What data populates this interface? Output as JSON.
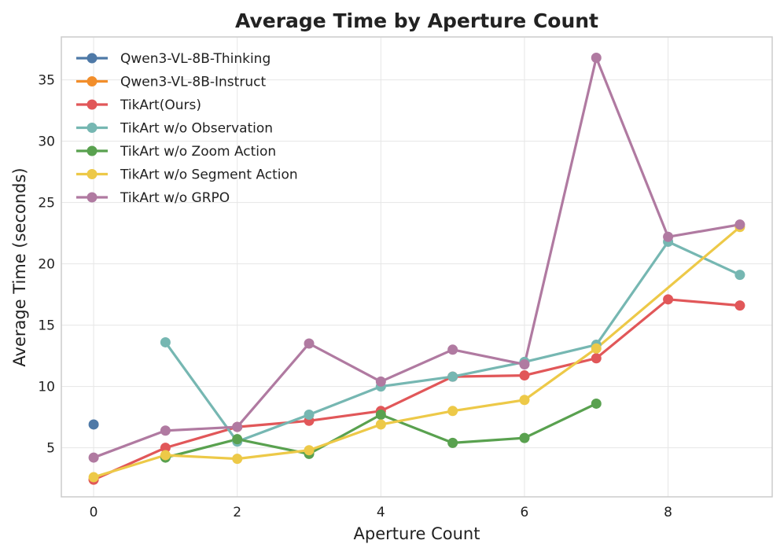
{
  "chart_data": {
    "type": "line",
    "title": "Average Time by Aperture Count",
    "xlabel": "Aperture Count",
    "ylabel": "Average Time (seconds)",
    "xlim": [
      -0.45,
      9.45
    ],
    "ylim": [
      1.0,
      38.5
    ],
    "xticks": [
      0,
      2,
      4,
      6,
      8
    ],
    "yticks": [
      5,
      10,
      15,
      20,
      25,
      30,
      35
    ],
    "grid": true,
    "legend_position": "top-left",
    "series": [
      {
        "name": "Qwen3-VL-8B-Thinking",
        "color": "#4e79a7",
        "points": [
          [
            0,
            6.9
          ]
        ]
      },
      {
        "name": "Qwen3-VL-8B-Instruct",
        "color": "#f28e2b",
        "points": [
          [
            0,
            2.4
          ]
        ]
      },
      {
        "name": "TikArt(Ours)",
        "color": "#e15759",
        "points": [
          [
            0,
            2.4
          ],
          [
            1,
            5.0
          ],
          [
            2,
            6.7
          ],
          [
            3,
            7.2
          ],
          [
            4,
            8.0
          ],
          [
            5,
            10.8
          ],
          [
            6,
            10.9
          ],
          [
            7,
            12.3
          ],
          [
            8,
            17.1
          ],
          [
            9,
            16.6
          ]
        ]
      },
      {
        "name": "TikArt w/o Observation",
        "color": "#76b7b2",
        "points": [
          [
            1,
            13.6
          ],
          [
            2,
            5.5
          ],
          [
            3,
            7.7
          ],
          [
            4,
            10.0
          ],
          [
            5,
            10.8
          ],
          [
            6,
            12.0
          ],
          [
            7,
            13.4
          ],
          [
            8,
            21.8
          ],
          [
            9,
            19.1
          ]
        ]
      },
      {
        "name": "TikArt w/o Zoom Action",
        "color": "#59a14f",
        "points": [
          [
            1,
            4.2
          ],
          [
            2,
            5.7
          ],
          [
            3,
            4.5
          ],
          [
            4,
            7.7
          ],
          [
            5,
            5.4
          ],
          [
            6,
            5.8
          ],
          [
            7,
            8.6
          ]
        ]
      },
      {
        "name": "TikArt w/o Segment Action",
        "color": "#edc948",
        "points": [
          [
            0,
            2.6
          ],
          [
            1,
            4.4
          ],
          [
            2,
            4.1
          ],
          [
            3,
            4.8
          ],
          [
            4,
            6.9
          ],
          [
            5,
            8.0
          ],
          [
            6,
            8.9
          ],
          [
            7,
            13.1
          ],
          [
            9,
            23.0
          ]
        ]
      },
      {
        "name": "TikArt w/o GRPO",
        "color": "#b07aa1",
        "points": [
          [
            0,
            4.2
          ],
          [
            1,
            6.4
          ],
          [
            2,
            6.7
          ],
          [
            3,
            13.5
          ],
          [
            4,
            10.4
          ],
          [
            5,
            13.0
          ],
          [
            6,
            11.8
          ],
          [
            7,
            36.8
          ],
          [
            8,
            22.2
          ],
          [
            9,
            23.2
          ]
        ]
      }
    ]
  }
}
